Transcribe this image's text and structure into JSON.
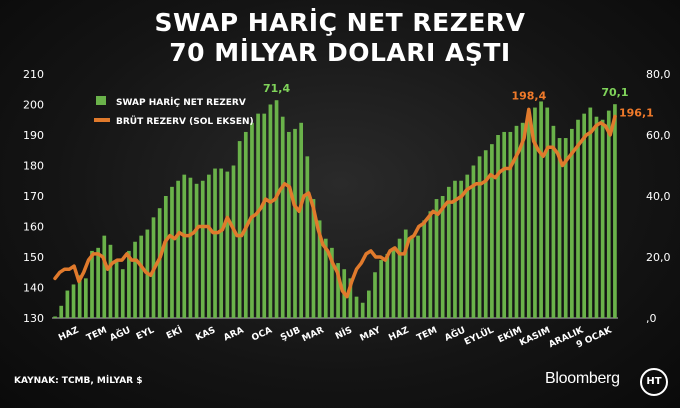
{
  "header": {
    "title_line1": "SWAP HARİÇ NET REZERV",
    "title_line2": "70 MİLYAR DOLARI AŞTI"
  },
  "footer": {
    "source": "KAYNAK: TCMB, MİLYAR $",
    "brand": "Bloomberg",
    "logo_text": "HT"
  },
  "colors": {
    "bar": "#6ab24a",
    "line": "#e07a2c",
    "bar_label": "#7fd35a",
    "line_label": "#f07a2a",
    "axis_text": "#ffffff"
  },
  "chart_data": {
    "type": "bar",
    "legend": {
      "placement": "top-left",
      "bar_series": "SWAP HARİÇ NET REZERV",
      "line_series": "BRÜT REZERV (SOL EKSEN)"
    },
    "left_axis": {
      "ylim": [
        130,
        210
      ],
      "ticks": [
        "130",
        "140",
        "150",
        "160",
        "170",
        "180",
        "190",
        "200",
        "210"
      ]
    },
    "right_axis": {
      "ylim": [
        0,
        80
      ],
      "ticks": [
        ",0",
        "20,0",
        "40,0",
        "60,0",
        "80,0"
      ]
    },
    "x_tick_labels": [
      "HAZ",
      "TEM",
      "AĞU",
      "EYL",
      "EKİ",
      "KAS",
      "ARA",
      "OCA",
      "ŞUB",
      "MAR",
      "NİS",
      "MAY",
      "HAZ",
      "TEM",
      "AĞU",
      "EYLÜL",
      "EKİM",
      "KASIM",
      "ARALIK",
      "9 OCAK"
    ],
    "x_tick_positions": [
      3,
      9,
      14,
      19,
      25,
      32,
      38,
      44,
      50,
      55,
      61,
      67,
      73,
      79,
      85,
      91,
      97,
      103,
      110,
      116
    ],
    "bars": {
      "name": "SWAP HARİÇ NET REZERV",
      "axis": "right",
      "values": [
        0.5,
        4,
        9,
        11,
        14,
        13,
        22,
        23,
        27,
        24,
        19,
        16,
        22,
        25,
        27,
        29,
        33,
        36,
        40,
        43,
        45,
        47,
        46,
        44,
        45,
        47,
        49,
        49,
        48,
        50,
        58,
        61,
        64,
        67,
        67,
        70,
        71.4,
        66,
        61,
        62,
        64,
        53,
        39,
        32,
        26,
        23,
        18,
        16,
        13,
        7,
        5,
        9,
        15,
        19,
        21,
        23,
        26,
        29,
        27,
        27,
        32,
        35,
        39,
        40,
        43,
        45,
        45,
        47,
        50,
        53,
        55,
        57,
        60,
        61,
        61,
        63,
        64,
        67,
        69,
        71,
        69,
        63,
        59,
        59,
        62,
        65,
        67,
        69,
        66,
        65,
        68,
        70.1
      ]
    },
    "line": {
      "name": "BRÜT REZERV (SOL EKSEN)",
      "axis": "left",
      "values": [
        143,
        145,
        146,
        146,
        147,
        142,
        145,
        149,
        151,
        151,
        150,
        146,
        148,
        149,
        149,
        151,
        149,
        149,
        147,
        145,
        144,
        147,
        150,
        155,
        157,
        156,
        158,
        157,
        157,
        158,
        160,
        160,
        160,
        158,
        158,
        159,
        163,
        160,
        157,
        157,
        160,
        163,
        164,
        166,
        169,
        168,
        169,
        172,
        174,
        173,
        167,
        165,
        170,
        171,
        166,
        159,
        154,
        152,
        148,
        145,
        139,
        137,
        142,
        146,
        148,
        151,
        152,
        150,
        150,
        149,
        152,
        153,
        151,
        151,
        156,
        157,
        160,
        161,
        163,
        165,
        164,
        166,
        168,
        168,
        169,
        170,
        172,
        173,
        174,
        174,
        175,
        177,
        176,
        178,
        179,
        179,
        182,
        185,
        189,
        198.4,
        188,
        185,
        183,
        186,
        186,
        184,
        180,
        182,
        184,
        186,
        188,
        190,
        191,
        193,
        194,
        193,
        190,
        196.1
      ]
    },
    "annotations": [
      {
        "text": "71,4",
        "series": "bar",
        "index": 36
      },
      {
        "text": "70,1",
        "series": "bar",
        "index": 91
      },
      {
        "text": "198,4",
        "series": "line",
        "index": 99
      },
      {
        "text": "196,1",
        "series": "line",
        "index": 117
      }
    ]
  }
}
